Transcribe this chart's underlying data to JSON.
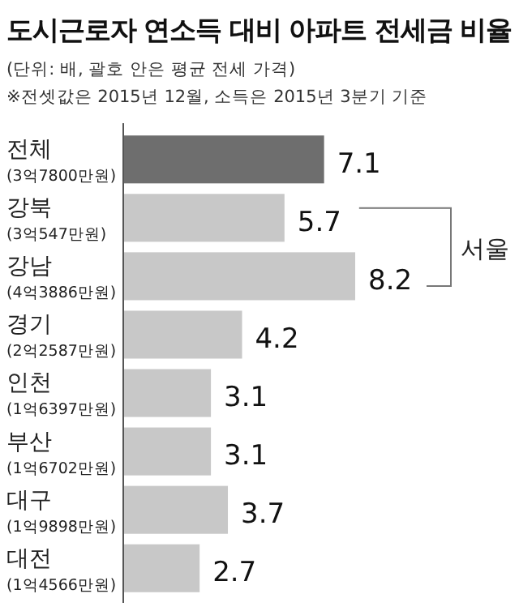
{
  "chart_data": {
    "type": "bar",
    "orientation": "horizontal",
    "title": "도시근로자 연소득 대비 아파트 전세금 비율",
    "annotations": [
      "(단위: 배, 괄호 안은 평균 전세 가격)",
      "※전셋값은 2015년 12월, 소득은 2015년 3분기 기준",
      "서울"
    ],
    "categories": [
      "전체\n(3억7800만원)",
      "강북\n(3억547만원)",
      "강남\n(4억3886만원)",
      "경기\n(2억2587만원)",
      "인천\n(1억6397만원)",
      "부산\n(1억6702만원)",
      "대구\n(1억9898만원)",
      "대전\n(1억4566만원)"
    ],
    "values": [
      7.1,
      5.7,
      8.2,
      4.2,
      3.1,
      3.1,
      3.7,
      2.7
    ],
    "colors": [
      "#6e6e6e",
      "#c8c8c8",
      "#c8c8c8",
      "#c8c8c8",
      "#c8c8c8",
      "#c8c8c8",
      "#c8c8c8",
      "#c8c8c8"
    ],
    "data_labels": true
  }
}
